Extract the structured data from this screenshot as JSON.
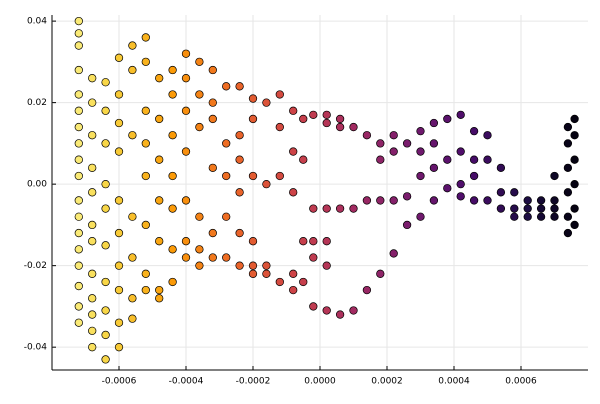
{
  "chart_data": {
    "type": "scatter",
    "xlim": [
      -0.0008,
      0.0008
    ],
    "ylim": [
      -0.0456,
      0.0415
    ],
    "xticks": [
      -0.0006,
      -0.0004,
      -0.0002,
      {
        "value": 0,
        "label": "0.0000"
      },
      0.0002,
      0.0004,
      0.0006
    ],
    "yticks": [
      -0.04,
      -0.02,
      {
        "value": 0,
        "label": "0.00"
      },
      0.02,
      0.04
    ],
    "grid": true,
    "colormap": [
      "#fcffa4",
      "#f7d13d",
      "#fb9b06",
      "#ed6925",
      "#cf4446",
      "#a52c60",
      "#781c6d",
      "#4a0c6b",
      "#1b0c41",
      "#000004"
    ],
    "x": [
      -0.00072,
      -0.00072,
      -0.00072,
      -0.00072,
      -0.00072,
      -0.00072,
      -0.00072,
      -0.00072,
      -0.00072,
      -0.00072,
      -0.00072,
      -0.00072,
      -0.00072,
      -0.00072,
      -0.00072,
      -0.00072,
      -0.00072,
      -0.00072,
      -0.00068,
      -0.00068,
      -0.00068,
      -0.00068,
      -0.00068,
      -0.00068,
      -0.00068,
      -0.00068,
      -0.00068,
      -0.00068,
      -0.00068,
      -0.00068,
      -0.00064,
      -0.00064,
      -0.00064,
      -0.00064,
      -0.00064,
      -0.00064,
      -0.00064,
      -0.00064,
      -0.00064,
      -0.00064,
      -0.0006,
      -0.0006,
      -0.0006,
      -0.0006,
      -0.0006,
      -0.0006,
      -0.0006,
      -0.0006,
      -0.0006,
      -0.0006,
      -0.00056,
      -0.00056,
      -0.00056,
      -0.00056,
      -0.00056,
      -0.00056,
      -0.00056,
      -0.00052,
      -0.00052,
      -0.00052,
      -0.00052,
      -0.00052,
      -0.00052,
      -0.00052,
      -0.00052,
      -0.00048,
      -0.00048,
      -0.00048,
      -0.00048,
      -0.00048,
      -0.00048,
      -0.00048,
      -0.00044,
      -0.00044,
      -0.00044,
      -0.00044,
      -0.00044,
      -0.00044,
      -0.00044,
      -0.0004,
      -0.0004,
      -0.0004,
      -0.0004,
      -0.0004,
      -0.0004,
      -0.0004,
      -0.00036,
      -0.00036,
      -0.00036,
      -0.00036,
      -0.00036,
      -0.00036,
      -0.00032,
      -0.00032,
      -0.00032,
      -0.00032,
      -0.00032,
      -0.00032,
      -0.00028,
      -0.00028,
      -0.00028,
      -0.00028,
      -0.00028,
      -0.00024,
      -0.00024,
      -0.00024,
      -0.00024,
      -0.00024,
      -0.00024,
      -0.0002,
      -0.0002,
      -0.0002,
      -0.0002,
      -0.0002,
      -0.0002,
      -0.00016,
      -0.00016,
      -0.00016,
      -0.00016,
      -0.00012,
      -0.00012,
      -0.00012,
      -0.00012,
      -8e-05,
      -8e-05,
      -8e-05,
      -8e-05,
      -8e-05,
      -5e-05,
      -5e-05,
      -5e-05,
      -5e-05,
      -2e-05,
      -2e-05,
      -2e-05,
      -2e-05,
      -2e-05,
      2e-05,
      2e-05,
      2e-05,
      2e-05,
      2e-05,
      2e-05,
      6e-05,
      6e-05,
      6e-05,
      6e-05,
      0.0001,
      0.0001,
      0.0001,
      0.00014,
      0.00014,
      0.00014,
      0.00018,
      0.00018,
      0.00018,
      0.00018,
      0.00022,
      0.00022,
      0.00022,
      0.00022,
      0.00026,
      0.00026,
      0.00026,
      0.0003,
      0.0003,
      0.0003,
      0.0003,
      0.00034,
      0.00034,
      0.00034,
      0.00034,
      0.00038,
      0.00038,
      0.00038,
      0.00042,
      0.00042,
      0.00042,
      0.00042,
      0.00046,
      0.00046,
      0.00046,
      0.00046,
      0.0005,
      0.0005,
      0.0005,
      0.00054,
      0.00054,
      0.00054,
      0.00058,
      0.00058,
      0.00058,
      0.00062,
      0.00062,
      0.00062,
      0.00066,
      0.00066,
      0.00066,
      0.0007,
      0.0007,
      0.0007,
      0.0007,
      0.00074,
      0.00074,
      0.00074,
      0.00074,
      0.00074,
      0.00074,
      0.00076,
      0.00076,
      0.00076,
      0.00076,
      0.00076,
      0.00076
    ],
    "values": [
      0.04,
      0.037,
      0.034,
      0.028,
      0.022,
      0.018,
      0.014,
      0.01,
      0.006,
      0.002,
      -0.004,
      -0.008,
      -0.012,
      -0.016,
      -0.02,
      -0.025,
      -0.03,
      -0.034,
      0.026,
      0.02,
      0.012,
      0.004,
      -0.002,
      -0.01,
      -0.014,
      -0.022,
      -0.028,
      -0.032,
      -0.036,
      -0.04,
      0.025,
      0.018,
      0.01,
      0,
      -0.006,
      -0.015,
      -0.024,
      -0.031,
      -0.037,
      -0.043,
      0.031,
      0.022,
      0.015,
      0.008,
      -0.004,
      -0.012,
      -0.02,
      -0.026,
      -0.034,
      -0.04,
      0.034,
      0.028,
      0.012,
      -0.008,
      -0.018,
      -0.028,
      -0.033,
      0.036,
      0.03,
      0.018,
      0.01,
      0.002,
      -0.01,
      -0.022,
      -0.026,
      0.026,
      0.016,
      0.006,
      -0.004,
      -0.014,
      -0.026,
      -0.028,
      0.028,
      0.022,
      0.012,
      0.002,
      -0.006,
      -0.016,
      -0.024,
      0.032,
      0.026,
      0.018,
      0.008,
      -0.004,
      -0.014,
      -0.018,
      0.03,
      0.022,
      0.014,
      -0.008,
      -0.016,
      -0.02,
      0.028,
      0.02,
      0.016,
      0.004,
      -0.012,
      -0.018,
      0.024,
      0.01,
      0.002,
      -0.008,
      -0.018,
      0.024,
      0.012,
      0.006,
      -0.002,
      -0.012,
      -0.02,
      0.021,
      0.016,
      0.002,
      -0.014,
      -0.02,
      -0.022,
      0.02,
      0.0,
      -0.02,
      -0.022,
      0.022,
      0.014,
      0.002,
      -0.024,
      0.018,
      0.008,
      -0.002,
      -0.022,
      -0.026,
      0.016,
      0.006,
      -0.014,
      -0.024,
      0.017,
      -0.006,
      -0.014,
      -0.018,
      -0.03,
      0.017,
      0.015,
      -0.006,
      -0.014,
      -0.02,
      -0.031,
      0.016,
      0.014,
      -0.006,
      -0.032,
      0.014,
      -0.006,
      -0.031,
      0.012,
      -0.004,
      -0.026,
      0.01,
      0.006,
      -0.004,
      -0.022,
      0.012,
      0.008,
      -0.004,
      -0.017,
      0.01,
      -0.003,
      -0.01,
      0.013,
      0.008,
      0.002,
      -0.008,
      0.015,
      0.01,
      0.004,
      -0.004,
      0.016,
      0.006,
      -0.001,
      0.017,
      0.008,
      0.0,
      -0.003,
      0.013,
      0.006,
      0.002,
      -0.004,
      0.012,
      0.006,
      -0.004,
      0.004,
      -0.002,
      -0.006,
      -0.002,
      -0.006,
      -0.008,
      -0.004,
      -0.006,
      -0.008,
      -0.004,
      -0.006,
      -0.008,
      -0.006,
      -0.008,
      -0.004,
      0.002,
      0.014,
      0.01,
      0.004,
      -0.002,
      -0.008,
      -0.012,
      0.016,
      0.012,
      0.006,
      0,
      -0.006,
      -0.01
    ]
  }
}
